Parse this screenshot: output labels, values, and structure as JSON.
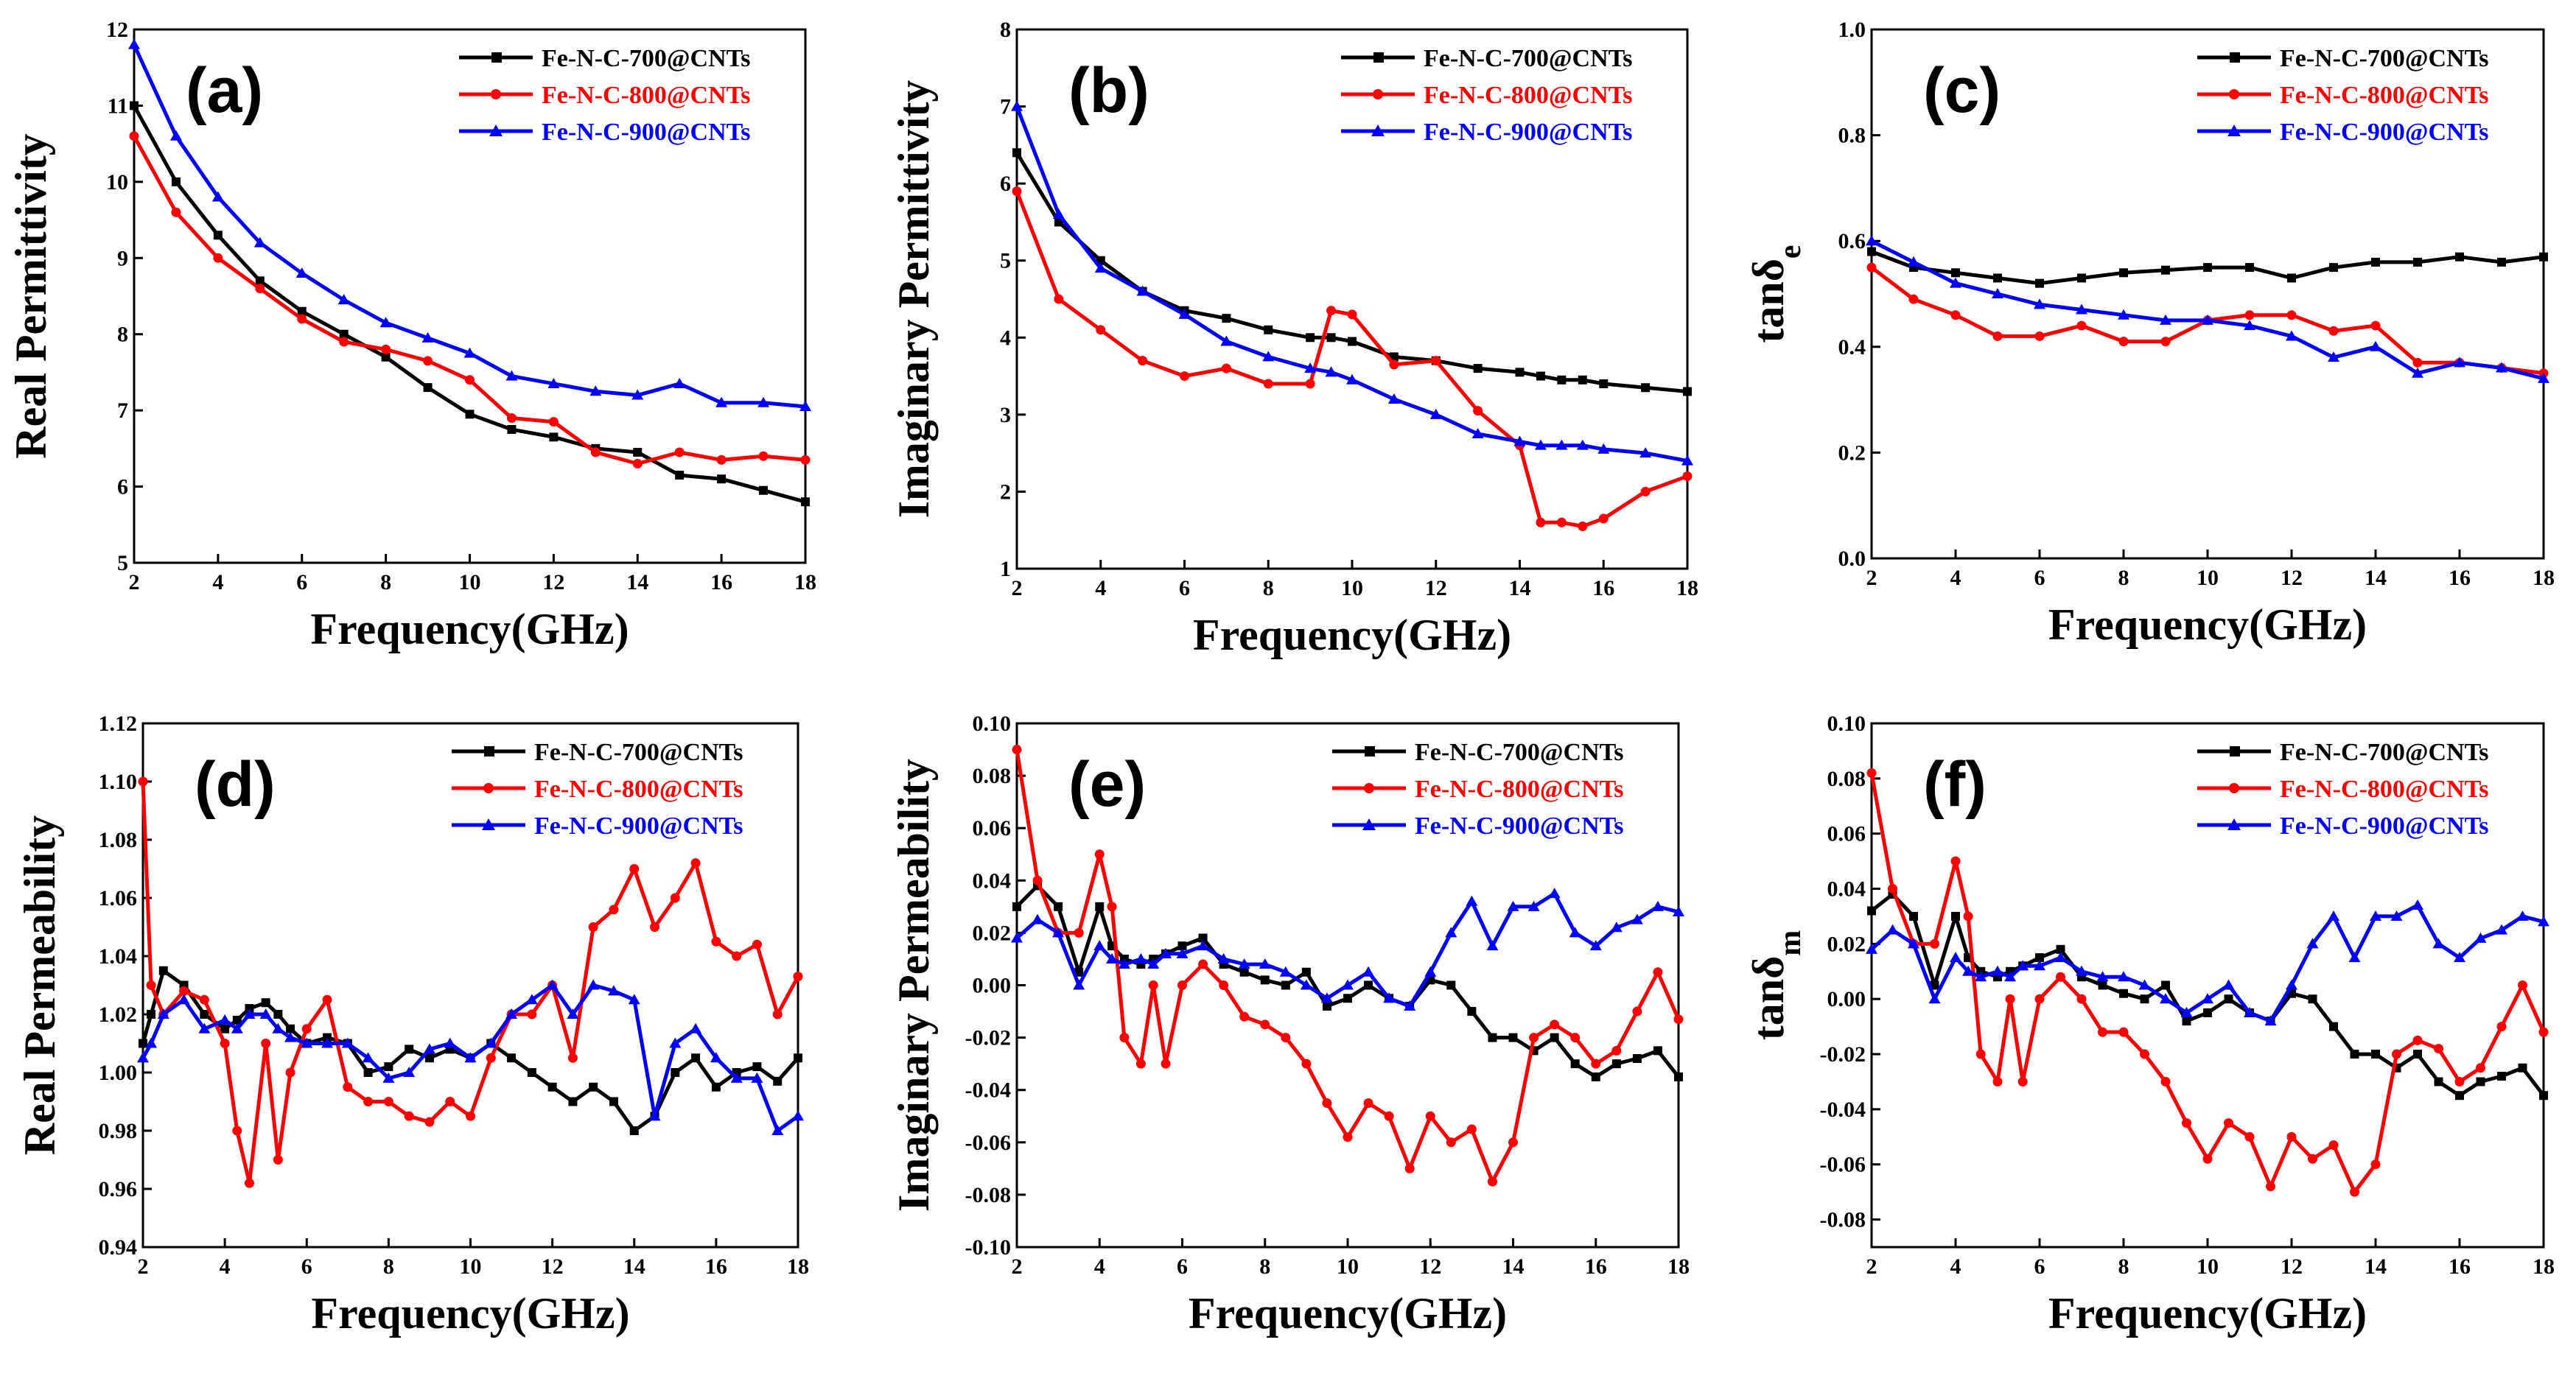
{
  "figure": {
    "colors": {
      "Fe-N-C-700@CNTs": "#000000",
      "Fe-N-C-800@CNTs": "#ff0000",
      "Fe-N-C-900@CNTs": "#0000ff"
    },
    "markers": {
      "Fe-N-C-700@CNTs": "square",
      "Fe-N-C-800@CNTs": "circle",
      "Fe-N-C-900@CNTs": "triangle"
    }
  },
  "chart_data": [
    {
      "type": "line",
      "panel": "(a)",
      "title": "",
      "xlabel": "Frequency(GHz)",
      "ylabel": "Real Permittivity",
      "xlim": [
        2,
        18
      ],
      "ylim": [
        5,
        12
      ],
      "xticks": [
        2,
        4,
        6,
        8,
        10,
        12,
        14,
        16,
        18
      ],
      "yticks": [
        5,
        6,
        7,
        8,
        9,
        10,
        11,
        12
      ],
      "x": [
        2,
        3,
        4,
        5,
        6,
        7,
        8,
        9,
        10,
        11,
        12,
        13,
        14,
        15,
        16,
        17,
        18
      ],
      "series": [
        {
          "name": "Fe-N-C-700@CNTs",
          "values": [
            11.0,
            10.0,
            9.3,
            8.7,
            8.3,
            8.0,
            7.7,
            7.3,
            6.95,
            6.75,
            6.65,
            6.5,
            6.45,
            6.15,
            6.1,
            5.95,
            5.8
          ]
        },
        {
          "name": "Fe-N-C-800@CNTs",
          "values": [
            10.6,
            9.6,
            9.0,
            8.6,
            8.2,
            7.9,
            7.8,
            7.65,
            7.4,
            6.9,
            6.85,
            6.45,
            6.3,
            6.45,
            6.35,
            6.4,
            6.35
          ]
        },
        {
          "name": "Fe-N-C-900@CNTs",
          "values": [
            11.8,
            10.6,
            9.8,
            9.2,
            8.8,
            8.45,
            8.15,
            7.95,
            7.75,
            7.45,
            7.35,
            7.25,
            7.2,
            7.35,
            7.1,
            7.1,
            7.05
          ]
        }
      ],
      "legend_position": "top-right"
    },
    {
      "type": "line",
      "panel": "(b)",
      "title": "",
      "xlabel": "Frequency(GHz)",
      "ylabel": "Imaginary Permittivity",
      "xlim": [
        2,
        18
      ],
      "ylim": [
        1,
        8
      ],
      "xticks": [
        2,
        4,
        6,
        8,
        10,
        12,
        14,
        16,
        18
      ],
      "yticks": [
        1,
        2,
        3,
        4,
        5,
        6,
        7,
        8
      ],
      "x": [
        2,
        3,
        4,
        5,
        6,
        7,
        8,
        9,
        9.5,
        10,
        11,
        12,
        13,
        14,
        14.5,
        15,
        15.5,
        16,
        17,
        18
      ],
      "series": [
        {
          "name": "Fe-N-C-700@CNTs",
          "values": [
            6.4,
            5.5,
            5.0,
            4.6,
            4.35,
            4.25,
            4.1,
            4.0,
            4.0,
            3.95,
            3.75,
            3.7,
            3.6,
            3.55,
            3.5,
            3.45,
            3.45,
            3.4,
            3.35,
            3.3
          ]
        },
        {
          "name": "Fe-N-C-800@CNTs",
          "values": [
            5.9,
            4.5,
            4.1,
            3.7,
            3.5,
            3.6,
            3.4,
            3.4,
            4.35,
            4.3,
            3.65,
            3.7,
            3.05,
            2.6,
            1.6,
            1.6,
            1.55,
            1.65,
            2.0,
            2.2
          ]
        },
        {
          "name": "Fe-N-C-900@CNTs",
          "values": [
            7.0,
            5.6,
            4.9,
            4.6,
            4.3,
            3.95,
            3.75,
            3.6,
            3.55,
            3.45,
            3.2,
            3.0,
            2.75,
            2.65,
            2.6,
            2.6,
            2.6,
            2.55,
            2.5,
            2.4
          ]
        }
      ],
      "legend_position": "top-right"
    },
    {
      "type": "line",
      "panel": "(c)",
      "title": "",
      "xlabel": "Frequency(GHz)",
      "ylabel": "tanδe",
      "xlim": [
        2,
        18
      ],
      "ylim": [
        0.0,
        1.0
      ],
      "xticks": [
        2,
        4,
        6,
        8,
        10,
        12,
        14,
        16,
        18
      ],
      "yticks": [
        "0.0",
        "0.2",
        "0.4",
        "0.6",
        "0.8",
        "1.0"
      ],
      "x": [
        2,
        3,
        4,
        5,
        6,
        7,
        8,
        9,
        10,
        11,
        12,
        13,
        14,
        15,
        16,
        17,
        18
      ],
      "series": [
        {
          "name": "Fe-N-C-700@CNTs",
          "values": [
            0.58,
            0.55,
            0.54,
            0.53,
            0.52,
            0.53,
            0.54,
            0.545,
            0.55,
            0.55,
            0.53,
            0.55,
            0.56,
            0.56,
            0.57,
            0.56,
            0.57
          ]
        },
        {
          "name": "Fe-N-C-800@CNTs",
          "values": [
            0.55,
            0.49,
            0.46,
            0.42,
            0.42,
            0.44,
            0.41,
            0.41,
            0.45,
            0.46,
            0.46,
            0.43,
            0.44,
            0.37,
            0.37,
            0.36,
            0.35
          ]
        },
        {
          "name": "Fe-N-C-900@CNTs",
          "values": [
            0.6,
            0.56,
            0.52,
            0.5,
            0.48,
            0.47,
            0.46,
            0.45,
            0.45,
            0.44,
            0.42,
            0.38,
            0.4,
            0.35,
            0.37,
            0.36,
            0.34
          ]
        }
      ],
      "legend_position": "top-right"
    },
    {
      "type": "line",
      "panel": "(d)",
      "title": "",
      "xlabel": "Frequency(GHz)",
      "ylabel": "Real Permeability",
      "xlim": [
        2,
        18
      ],
      "ylim": [
        0.94,
        1.12
      ],
      "xticks": [
        2,
        4,
        6,
        8,
        10,
        12,
        14,
        16,
        18
      ],
      "yticks": [
        "0.94",
        "0.96",
        "0.98",
        "1.00",
        "1.02",
        "1.04",
        "1.06",
        "1.08",
        "1.10",
        "1.12"
      ],
      "x": [
        2,
        2.2,
        2.5,
        3,
        3.5,
        4,
        4.3,
        4.6,
        5,
        5.3,
        5.6,
        6,
        6.5,
        7,
        7.5,
        8,
        8.5,
        9,
        9.5,
        10,
        10.5,
        11,
        11.5,
        12,
        12.5,
        13,
        13.5,
        14,
        14.5,
        15,
        15.5,
        16,
        16.5,
        17,
        17.5,
        18
      ],
      "series": [
        {
          "name": "Fe-N-C-700@CNTs",
          "values": [
            1.01,
            1.02,
            1.035,
            1.03,
            1.02,
            1.015,
            1.018,
            1.022,
            1.024,
            1.02,
            1.015,
            1.01,
            1.012,
            1.01,
            1.0,
            1.002,
            1.008,
            1.005,
            1.008,
            1.005,
            1.01,
            1.005,
            1.0,
            0.995,
            0.99,
            0.995,
            0.99,
            0.98,
            0.985,
            1.0,
            1.005,
            0.995,
            1.0,
            1.002,
            0.997,
            1.005
          ]
        },
        {
          "name": "Fe-N-C-800@CNTs",
          "values": [
            1.1,
            1.03,
            1.02,
            1.028,
            1.025,
            1.01,
            0.98,
            0.962,
            1.01,
            0.97,
            1.0,
            1.015,
            1.025,
            0.995,
            0.99,
            0.99,
            0.985,
            0.983,
            0.99,
            0.985,
            1.005,
            1.02,
            1.02,
            1.03,
            1.005,
            1.05,
            1.056,
            1.07,
            1.05,
            1.06,
            1.072,
            1.045,
            1.04,
            1.044,
            1.02,
            1.033
          ]
        },
        {
          "name": "Fe-N-C-900@CNTs",
          "values": [
            1.005,
            1.01,
            1.02,
            1.025,
            1.015,
            1.018,
            1.015,
            1.02,
            1.02,
            1.015,
            1.012,
            1.01,
            1.01,
            1.01,
            1.005,
            0.998,
            1.0,
            1.008,
            1.01,
            1.005,
            1.01,
            1.02,
            1.025,
            1.03,
            1.02,
            1.03,
            1.028,
            1.025,
            0.985,
            1.01,
            1.015,
            1.005,
            0.998,
            0.998,
            0.98,
            0.985
          ]
        }
      ],
      "legend_position": "top-right"
    },
    {
      "type": "line",
      "panel": "(e)",
      "title": "",
      "xlabel": "Frequency(GHz)",
      "ylabel": "Imaginary Permeability",
      "xlim": [
        2,
        18
      ],
      "ylim": [
        -0.1,
        0.1
      ],
      "xticks": [
        2,
        4,
        6,
        8,
        10,
        12,
        14,
        16,
        18
      ],
      "yticks": [
        "-0.10",
        "-0.08",
        "-0.06",
        "-0.04",
        "-0.02",
        "0.00",
        "0.02",
        "0.04",
        "0.06",
        "0.08",
        "0.10"
      ],
      "x": [
        2,
        2.5,
        3,
        3.5,
        4,
        4.3,
        4.6,
        5,
        5.3,
        5.6,
        6,
        6.5,
        7,
        7.5,
        8,
        8.5,
        9,
        9.5,
        10,
        10.5,
        11,
        11.5,
        12,
        12.5,
        13,
        13.5,
        14,
        14.5,
        15,
        15.5,
        16,
        16.5,
        17,
        17.5,
        18
      ],
      "series": [
        {
          "name": "Fe-N-C-700@CNTs",
          "values": [
            0.03,
            0.038,
            0.03,
            0.005,
            0.03,
            0.015,
            0.01,
            0.008,
            0.01,
            0.012,
            0.015,
            0.018,
            0.008,
            0.005,
            0.002,
            0.0,
            0.005,
            -0.008,
            -0.005,
            0.0,
            -0.005,
            -0.008,
            0.002,
            0.0,
            -0.01,
            -0.02,
            -0.02,
            -0.025,
            -0.02,
            -0.03,
            -0.035,
            -0.03,
            -0.028,
            -0.025,
            -0.035
          ]
        },
        {
          "name": "Fe-N-C-800@CNTs",
          "values": [
            0.09,
            0.04,
            0.02,
            0.02,
            0.05,
            0.03,
            -0.02,
            -0.03,
            0.0,
            -0.03,
            0.0,
            0.008,
            0.0,
            -0.012,
            -0.015,
            -0.02,
            -0.03,
            -0.045,
            -0.058,
            -0.045,
            -0.05,
            -0.07,
            -0.05,
            -0.06,
            -0.055,
            -0.075,
            -0.06,
            -0.02,
            -0.015,
            -0.02,
            -0.03,
            -0.025,
            -0.01,
            0.005,
            -0.013
          ]
        },
        {
          "name": "Fe-N-C-900@CNTs",
          "values": [
            0.018,
            0.025,
            0.02,
            0.0,
            0.015,
            0.01,
            0.008,
            0.01,
            0.008,
            0.012,
            0.012,
            0.015,
            0.01,
            0.008,
            0.008,
            0.005,
            0.0,
            -0.005,
            0.0,
            0.005,
            -0.005,
            -0.008,
            0.005,
            0.02,
            0.032,
            0.015,
            0.03,
            0.03,
            0.035,
            0.02,
            0.015,
            0.022,
            0.025,
            0.03,
            0.028
          ]
        }
      ],
      "legend_position": "top-right"
    },
    {
      "type": "line",
      "panel": "(f)",
      "title": "",
      "xlabel": "Frequency(GHz)",
      "ylabel": "tanδm",
      "xlim": [
        2,
        18
      ],
      "ylim": [
        -0.09,
        0.1
      ],
      "xticks": [
        2,
        4,
        6,
        8,
        10,
        12,
        14,
        16,
        18
      ],
      "yticks": [
        "-0.08",
        "-0.06",
        "-0.04",
        "-0.02",
        "0.00",
        "0.02",
        "0.04",
        "0.06",
        "0.08",
        "0.10"
      ],
      "x": [
        2,
        2.5,
        3,
        3.5,
        4,
        4.3,
        4.6,
        5,
        5.3,
        5.6,
        6,
        6.5,
        7,
        7.5,
        8,
        8.5,
        9,
        9.5,
        10,
        10.5,
        11,
        11.5,
        12,
        12.5,
        13,
        13.5,
        14,
        14.5,
        15,
        15.5,
        16,
        16.5,
        17,
        17.5,
        18
      ],
      "series": [
        {
          "name": "Fe-N-C-700@CNTs",
          "values": [
            0.032,
            0.038,
            0.03,
            0.005,
            0.03,
            0.015,
            0.01,
            0.008,
            0.01,
            0.012,
            0.015,
            0.018,
            0.008,
            0.005,
            0.002,
            0.0,
            0.005,
            -0.008,
            -0.005,
            0.0,
            -0.005,
            -0.008,
            0.002,
            0.0,
            -0.01,
            -0.02,
            -0.02,
            -0.025,
            -0.02,
            -0.03,
            -0.035,
            -0.03,
            -0.028,
            -0.025,
            -0.035
          ]
        },
        {
          "name": "Fe-N-C-800@CNTs",
          "values": [
            0.082,
            0.04,
            0.02,
            0.02,
            0.05,
            0.03,
            -0.02,
            -0.03,
            0.0,
            -0.03,
            0.0,
            0.008,
            0.0,
            -0.012,
            -0.012,
            -0.02,
            -0.03,
            -0.045,
            -0.058,
            -0.045,
            -0.05,
            -0.068,
            -0.05,
            -0.058,
            -0.053,
            -0.07,
            -0.06,
            -0.02,
            -0.015,
            -0.018,
            -0.03,
            -0.025,
            -0.01,
            0.005,
            -0.012
          ]
        },
        {
          "name": "Fe-N-C-900@CNTs",
          "values": [
            0.018,
            0.025,
            0.02,
            0.0,
            0.015,
            0.01,
            0.008,
            0.01,
            0.008,
            0.012,
            0.012,
            0.015,
            0.01,
            0.008,
            0.008,
            0.005,
            0.0,
            -0.005,
            0.0,
            0.005,
            -0.005,
            -0.008,
            0.005,
            0.02,
            0.03,
            0.015,
            0.03,
            0.03,
            0.034,
            0.02,
            0.015,
            0.022,
            0.025,
            0.03,
            0.028
          ]
        }
      ],
      "legend_position": "top-right"
    }
  ]
}
